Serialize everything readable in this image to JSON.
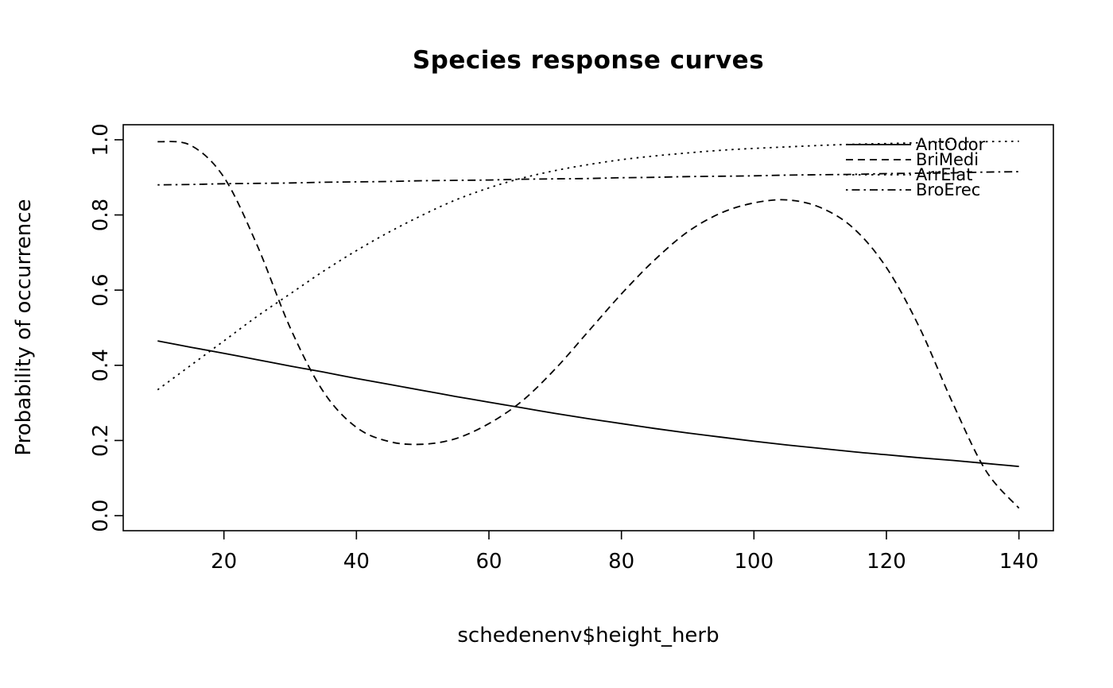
{
  "chart": {
    "title": "Species response curves",
    "xlabel": "schedenenv$height_herb",
    "ylabel": "Probability of occurrence"
  },
  "chart_data": {
    "type": "line",
    "title": "Species response curves",
    "xlabel": "schedenenv$height_herb",
    "ylabel": "Probability of occurrence",
    "xlim": [
      4.8,
      145.2
    ],
    "ylim": [
      -0.04,
      1.04
    ],
    "grid": false,
    "legend_position": "topright",
    "line_color": "#000000",
    "x_ticks": {
      "values": [
        20,
        40,
        60,
        80,
        100,
        120,
        140
      ],
      "labels": [
        "20",
        "40",
        "60",
        "80",
        "100",
        "120",
        "140"
      ]
    },
    "y_ticks": {
      "values": [
        0.0,
        0.2,
        0.4,
        0.6,
        0.8,
        1.0
      ],
      "labels": [
        "0.0",
        "0.2",
        "0.4",
        "0.6",
        "0.8",
        "1.0"
      ]
    },
    "x": [
      10,
      15,
      20,
      25,
      30,
      35,
      40,
      45,
      50,
      55,
      60,
      65,
      70,
      75,
      80,
      85,
      90,
      95,
      100,
      105,
      110,
      115,
      120,
      125,
      130,
      135,
      140
    ],
    "series": [
      {
        "name": "AntOdor",
        "linestyle": "solid",
        "values": [
          0.465,
          0.448,
          0.432,
          0.415,
          0.398,
          0.382,
          0.365,
          0.349,
          0.333,
          0.317,
          0.302,
          0.287,
          0.272,
          0.258,
          0.245,
          0.232,
          0.22,
          0.209,
          0.198,
          0.188,
          0.179,
          0.17,
          0.162,
          0.154,
          0.147,
          0.139,
          0.131
        ]
      },
      {
        "name": "BriMedi",
        "linestyle": "dashed",
        "values": [
          0.995,
          0.985,
          0.9,
          0.72,
          0.5,
          0.33,
          0.235,
          0.197,
          0.19,
          0.205,
          0.245,
          0.305,
          0.39,
          0.49,
          0.59,
          0.68,
          0.755,
          0.805,
          0.832,
          0.84,
          0.82,
          0.765,
          0.66,
          0.5,
          0.3,
          0.12,
          0.02
        ]
      },
      {
        "name": "ArrElat",
        "linestyle": "dotted",
        "values": [
          0.335,
          0.4,
          0.465,
          0.53,
          0.59,
          0.65,
          0.705,
          0.755,
          0.8,
          0.84,
          0.872,
          0.898,
          0.918,
          0.934,
          0.947,
          0.957,
          0.965,
          0.972,
          0.977,
          0.981,
          0.985,
          0.988,
          0.99,
          0.992,
          0.994,
          0.995,
          0.996
        ]
      },
      {
        "name": "BroErec",
        "linestyle": "dashdot",
        "values": [
          0.88,
          0.881,
          0.883,
          0.884,
          0.885,
          0.887,
          0.888,
          0.889,
          0.891,
          0.892,
          0.893,
          0.895,
          0.896,
          0.897,
          0.899,
          0.9,
          0.902,
          0.903,
          0.904,
          0.906,
          0.907,
          0.908,
          0.91,
          0.911,
          0.912,
          0.914,
          0.915
        ]
      }
    ]
  }
}
